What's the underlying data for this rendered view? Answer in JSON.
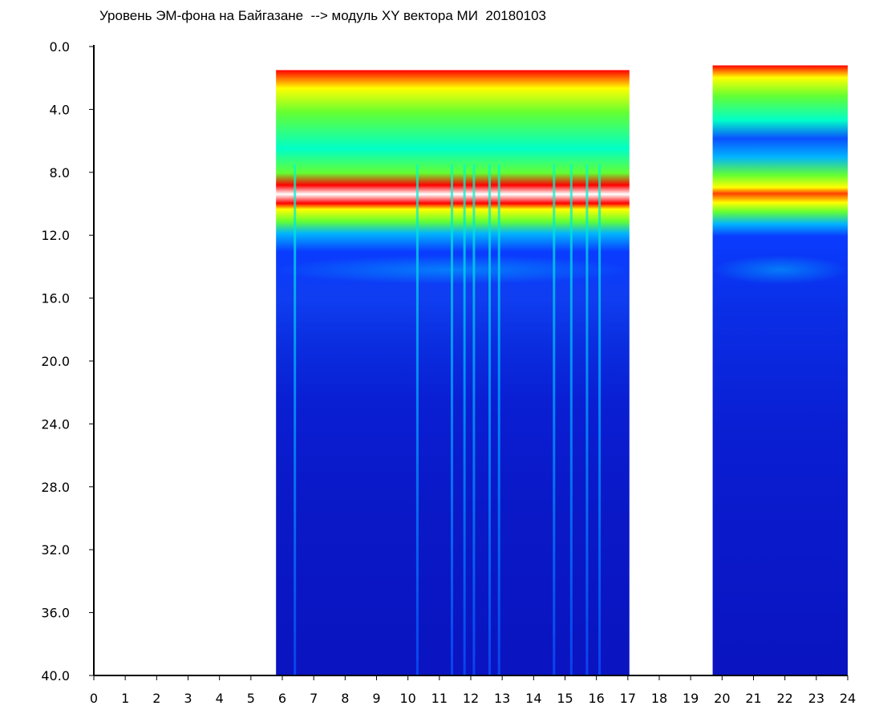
{
  "chart_data": {
    "type": "heatmap",
    "title": "Уровень ЭМ-фона на Байгазане  --> модуль XY вектора МИ  20180103",
    "xlabel": "",
    "ylabel": "",
    "xlim": [
      0,
      24
    ],
    "ylim": [
      0.0,
      40.0
    ],
    "y_inverted": true,
    "grid": false,
    "x_ticks": [
      "0",
      "1",
      "2",
      "3",
      "4",
      "5",
      "6",
      "7",
      "8",
      "9",
      "10",
      "11",
      "12",
      "13",
      "14",
      "15",
      "16",
      "17",
      "18",
      "19",
      "20",
      "21",
      "22",
      "23",
      "24"
    ],
    "y_ticks": [
      "0.0",
      "4.0",
      "8.0",
      "12.0",
      "16.0",
      "20.0",
      "24.0",
      "28.0",
      "32.0",
      "36.0",
      "40.0"
    ],
    "colormap": [
      "#0a14c8",
      "#0a3cff",
      "#00b4ff",
      "#00ffc8",
      "#64ff32",
      "#ffff00",
      "#ff0000",
      "#ffffff"
    ],
    "data_segments": [
      {
        "x_start": 5.8,
        "x_end": 17.05,
        "top_value": 1.5
      },
      {
        "x_start": 19.7,
        "x_end": 24.0,
        "top_value": 1.2
      }
    ],
    "bands": [
      {
        "y_from": 1.5,
        "y_to": 7.0,
        "level": "high"
      },
      {
        "y_from": 7.0,
        "y_to": 8.6,
        "level": "peak"
      },
      {
        "y_from": 8.6,
        "y_to": 10.0,
        "level": "medium"
      },
      {
        "y_from": 10.0,
        "y_to": 40.0,
        "level": "low"
      }
    ],
    "vertical_streaks_x": [
      6.4,
      10.3,
      11.4,
      11.8,
      12.1,
      12.6,
      12.9,
      14.65,
      15.2,
      15.7,
      16.1
    ]
  }
}
